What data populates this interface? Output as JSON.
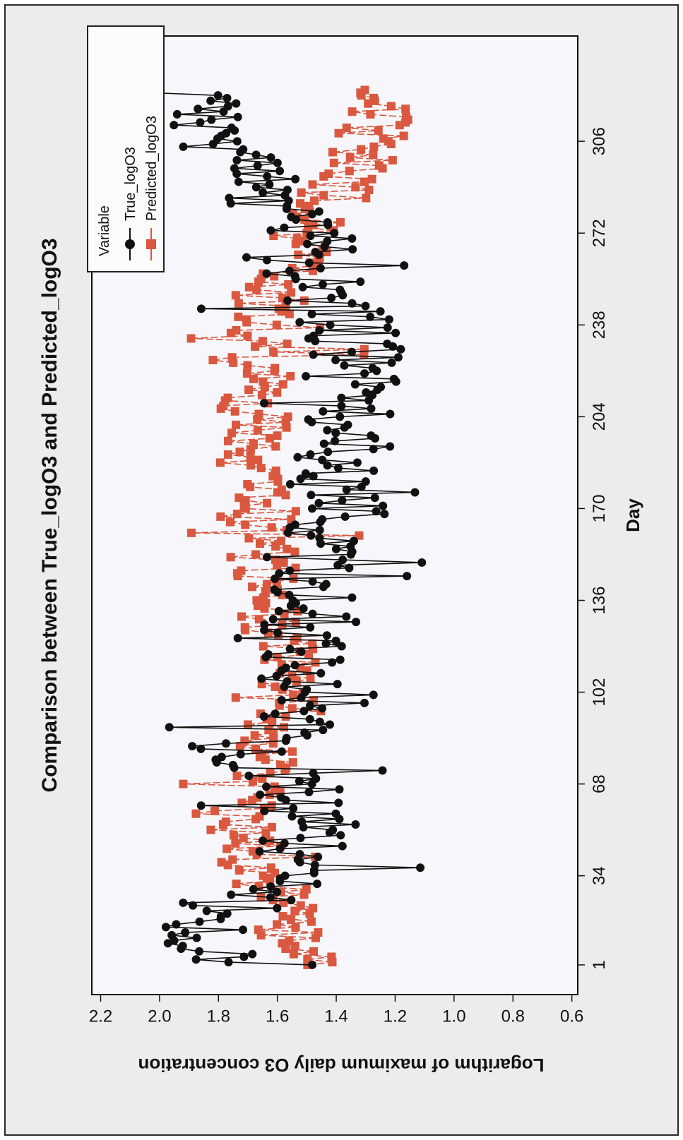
{
  "chart_data": {
    "type": "line",
    "title": "Comparison between True_logO3 and Predicted_logO3",
    "xlabel": "Day",
    "ylabel": "Logarithm of maximum daily O3 concentration",
    "x_ticks": [
      1,
      34,
      68,
      102,
      136,
      170,
      204,
      238,
      272,
      306
    ],
    "y_ticks": [
      "0.6",
      "0.8",
      "1.0",
      "1.2",
      "1.4",
      "1.6",
      "1.8",
      "2.0",
      "2.2"
    ],
    "xlim": [
      -10,
      345
    ],
    "ylim": [
      0.58,
      2.23
    ],
    "legend": {
      "title": "Variable",
      "placement": "top-right",
      "entries": [
        "True_logO3",
        "Predicted_logO3"
      ]
    },
    "series": [
      {
        "name": "True_logO3",
        "color": "#111111",
        "marker": "circle",
        "keypoints": [
          [
            1,
            1.72
          ],
          [
            8,
            1.86
          ],
          [
            16,
            1.84
          ],
          [
            28,
            1.66
          ],
          [
            34,
            1.56
          ],
          [
            45,
            1.52
          ],
          [
            56,
            1.5
          ],
          [
            68,
            1.52
          ],
          [
            80,
            1.74
          ],
          [
            95,
            1.48
          ],
          [
            102,
            1.42
          ],
          [
            110,
            1.56
          ],
          [
            124,
            1.5
          ],
          [
            136,
            1.46
          ],
          [
            150,
            1.5
          ],
          [
            160,
            1.42
          ],
          [
            170,
            1.36
          ],
          [
            182,
            1.44
          ],
          [
            195,
            1.36
          ],
          [
            204,
            1.34
          ],
          [
            215,
            1.36
          ],
          [
            230,
            1.32
          ],
          [
            240,
            1.38
          ],
          [
            252,
            1.46
          ],
          [
            262,
            1.52
          ],
          [
            272,
            1.48
          ],
          [
            282,
            1.6
          ],
          [
            290,
            1.62
          ],
          [
            296,
            1.7
          ],
          [
            306,
            1.8
          ],
          [
            318,
            1.86
          ],
          [
            325,
            1.9
          ]
        ]
      },
      {
        "name": "Predicted_logO3",
        "color": "#d9583f",
        "marker": "square",
        "keypoints": [
          [
            1,
            1.5
          ],
          [
            8,
            1.54
          ],
          [
            16,
            1.56
          ],
          [
            28,
            1.6
          ],
          [
            34,
            1.66
          ],
          [
            45,
            1.72
          ],
          [
            56,
            1.74
          ],
          [
            68,
            1.7
          ],
          [
            80,
            1.64
          ],
          [
            95,
            1.56
          ],
          [
            102,
            1.54
          ],
          [
            110,
            1.58
          ],
          [
            124,
            1.6
          ],
          [
            136,
            1.62
          ],
          [
            150,
            1.64
          ],
          [
            160,
            1.66
          ],
          [
            170,
            1.68
          ],
          [
            182,
            1.7
          ],
          [
            195,
            1.7
          ],
          [
            204,
            1.68
          ],
          [
            215,
            1.68
          ],
          [
            230,
            1.66
          ],
          [
            240,
            1.64
          ],
          [
            252,
            1.62
          ],
          [
            262,
            1.54
          ],
          [
            272,
            1.5
          ],
          [
            282,
            1.44
          ],
          [
            290,
            1.38
          ],
          [
            296,
            1.34
          ],
          [
            306,
            1.3
          ],
          [
            318,
            1.24
          ],
          [
            325,
            1.2
          ]
        ]
      }
    ]
  }
}
